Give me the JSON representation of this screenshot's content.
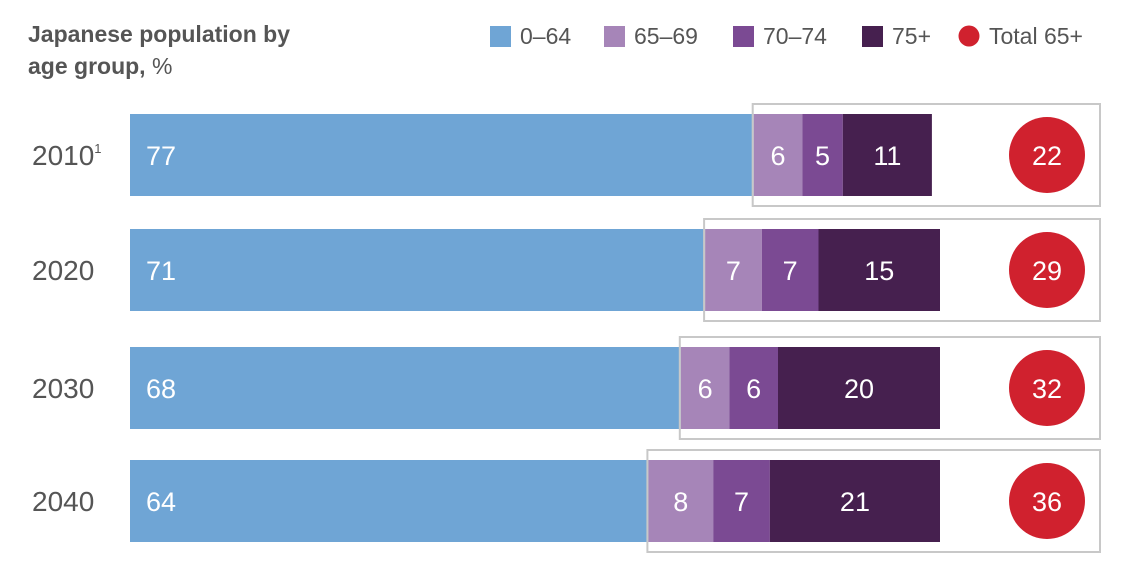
{
  "chart_data": {
    "type": "bar",
    "stacked": true,
    "title": "Japanese population by",
    "title_line2": "age group,",
    "unit": "%",
    "categories": [
      "2010",
      "2020",
      "2030",
      "2040"
    ],
    "category_footnotes": [
      "1",
      "",
      "",
      ""
    ],
    "series": [
      {
        "name": "0–64",
        "color": "#6fa5d5",
        "values": [
          77,
          71,
          68,
          64
        ]
      },
      {
        "name": "65–69",
        "color": "#a685b8",
        "values": [
          6,
          7,
          6,
          8
        ]
      },
      {
        "name": "70–74",
        "color": "#7b4a93",
        "values": [
          5,
          7,
          6,
          7
        ]
      },
      {
        "name": "75+",
        "color": "#46204f",
        "values": [
          11,
          15,
          20,
          21
        ]
      }
    ],
    "totals": {
      "name": "Total 65+",
      "color": "#d0212e",
      "values": [
        22,
        29,
        32,
        36
      ]
    },
    "legend_position": "top-right",
    "grid": false
  }
}
